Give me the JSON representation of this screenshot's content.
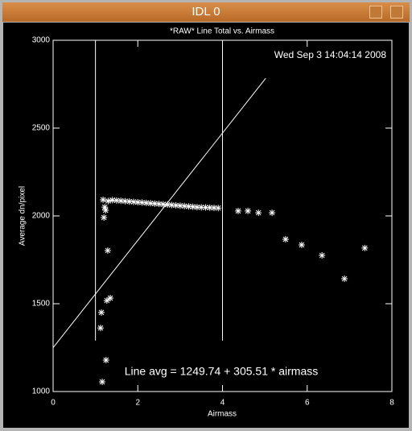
{
  "window": {
    "title": "IDL 0"
  },
  "chart_data": {
    "type": "scatter",
    "title": "*RAW* Line Total vs. Airmass",
    "timestamp": "Wed Sep  3 14:04:14 2008",
    "x_label": "Airmass",
    "y_label": "Average dn/pixel",
    "annotation": "Line avg = 1249.74 + 305.51 * airmass",
    "xlim": [
      0,
      8
    ],
    "ylim": [
      1000,
      3000
    ],
    "xticks": [
      0,
      2,
      4,
      6,
      8
    ],
    "yticks": [
      1000,
      1500,
      2000,
      2500,
      3000
    ],
    "color": "#ffffff",
    "points": {
      "x": [
        1.18,
        1.22,
        1.24,
        1.2,
        1.29,
        1.14,
        1.12,
        1.27,
        1.35,
        1.25,
        1.16,
        1.3,
        1.4,
        1.5,
        1.6,
        1.7,
        1.8,
        1.9,
        2.0,
        2.1,
        2.2,
        2.3,
        2.4,
        2.5,
        2.6,
        2.7,
        2.8,
        2.9,
        3.0,
        3.1,
        3.2,
        3.3,
        3.4,
        3.5,
        3.6,
        3.7,
        3.8,
        3.9,
        4.37,
        4.6,
        4.85,
        5.17,
        5.49,
        5.87,
        6.35,
        6.88,
        7.36
      ],
      "y": [
        2092,
        2050,
        2032,
        1991,
        1803,
        1450,
        1362,
        1518,
        1532,
        1179,
        1055,
        2085,
        2090,
        2088,
        2086,
        2084,
        2082,
        2080,
        2078,
        2076,
        2074,
        2072,
        2070,
        2068,
        2066,
        2064,
        2062,
        2060,
        2058,
        2056,
        2054,
        2052,
        2050,
        2049,
        2048,
        2047,
        2046,
        2045,
        2028,
        2028,
        2018,
        2018,
        1867,
        1835,
        1775,
        1642,
        1817
      ]
    },
    "fit_line": {
      "x": [
        0,
        5.02
      ],
      "y": [
        1249.74,
        2783.4
      ]
    },
    "vlines": [
      {
        "x": 1,
        "y": [
          1290,
          3000
        ]
      },
      {
        "x": 4,
        "y": [
          1290,
          3000
        ]
      }
    ]
  }
}
